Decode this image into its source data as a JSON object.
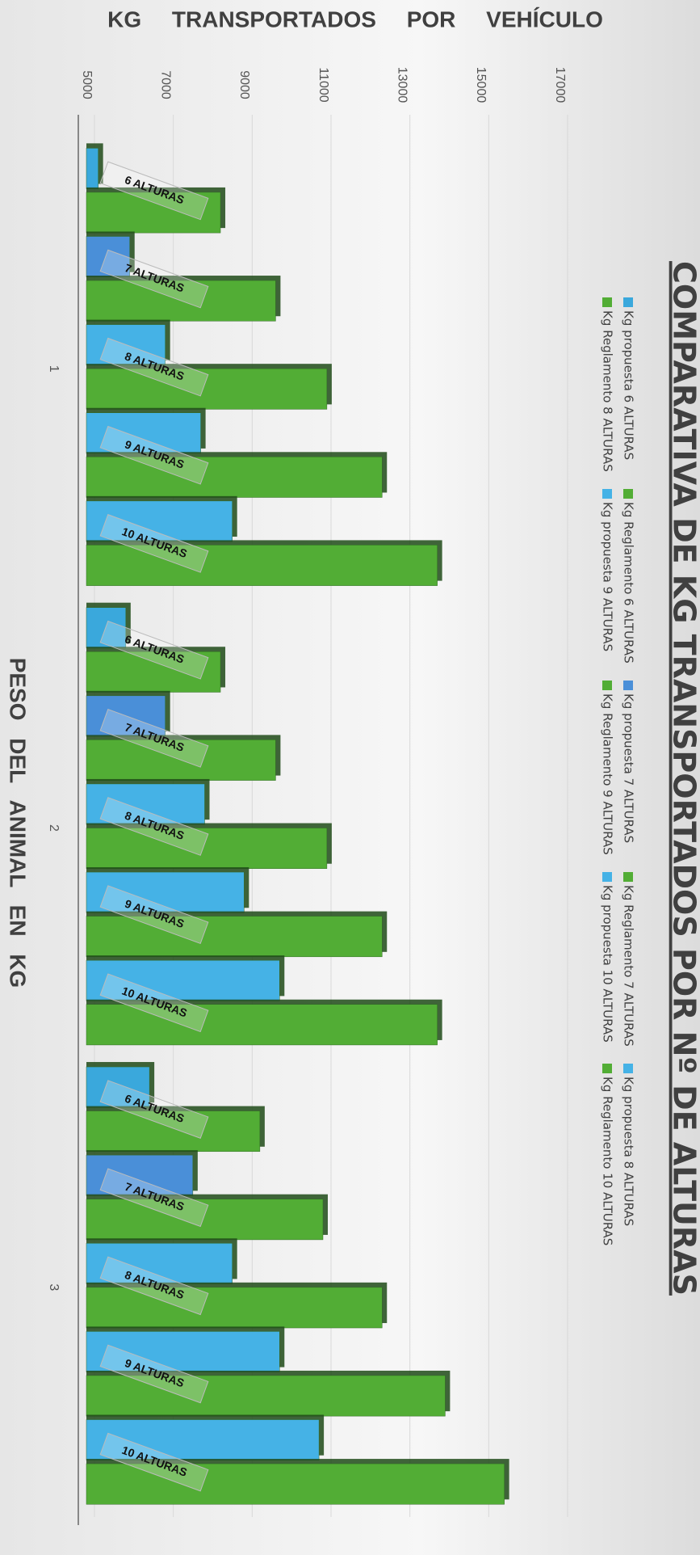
{
  "chart_data": {
    "type": "bar",
    "title": "COMPARATIVA DE KG TRANSPORTADOS POR Nº DE ALTURAS",
    "value_axis_title": "KG TRANSPORTADOS POR VEHÍCULO",
    "category_axis_title": "PESO DEL ANIMAL EN KG",
    "categories": [
      "1",
      "2",
      "3"
    ],
    "bar_labels": [
      "6 ALTURAS",
      "7 ALTURAS",
      "8 ALTURAS",
      "9 ALTURAS",
      "10 ALTURAS"
    ],
    "ylim": [
      5000,
      17000
    ],
    "yticks": [
      5000,
      7000,
      9000,
      11000,
      13000,
      15000,
      17000
    ],
    "grid": true,
    "series": [
      {
        "name": "Kg propuesta 6 ALTURAS",
        "color": "#3aa8dc",
        "values": [
          5300,
          6000,
          6600
        ]
      },
      {
        "name": "Kg Reglamento 6 ALTURAS",
        "color": "#52ad35",
        "values": [
          8400,
          8400,
          9400
        ]
      },
      {
        "name": "Kg propuesta 7 ALTURAS",
        "color": "#4a8fd8",
        "values": [
          6100,
          7000,
          7700
        ]
      },
      {
        "name": "Kg Reglamento 7 ALTURAS",
        "color": "#52ad35",
        "values": [
          9800,
          9800,
          11000
        ]
      },
      {
        "name": "Kg propuesta 8 ALTURAS",
        "color": "#45b2e6",
        "values": [
          7000,
          8000,
          8700
        ]
      },
      {
        "name": "Kg Reglamento 8 ALTURAS",
        "color": "#52ad35",
        "values": [
          11100,
          11100,
          12500
        ]
      },
      {
        "name": "Kg propuesta 9 ALTURAS",
        "color": "#45b2e6",
        "values": [
          7900,
          9000,
          9900
        ]
      },
      {
        "name": "Kg Reglamento 9 ALTURAS",
        "color": "#52ad35",
        "values": [
          12500,
          12500,
          14100
        ]
      },
      {
        "name": "Kg propuesta 10 ALTURAS",
        "color": "#45b2e6",
        "values": [
          8700,
          9900,
          10900
        ]
      },
      {
        "name": "Kg Reglamento 10 ALTURAS",
        "color": "#52ad35",
        "values": [
          13900,
          13900,
          15600
        ]
      }
    ]
  }
}
